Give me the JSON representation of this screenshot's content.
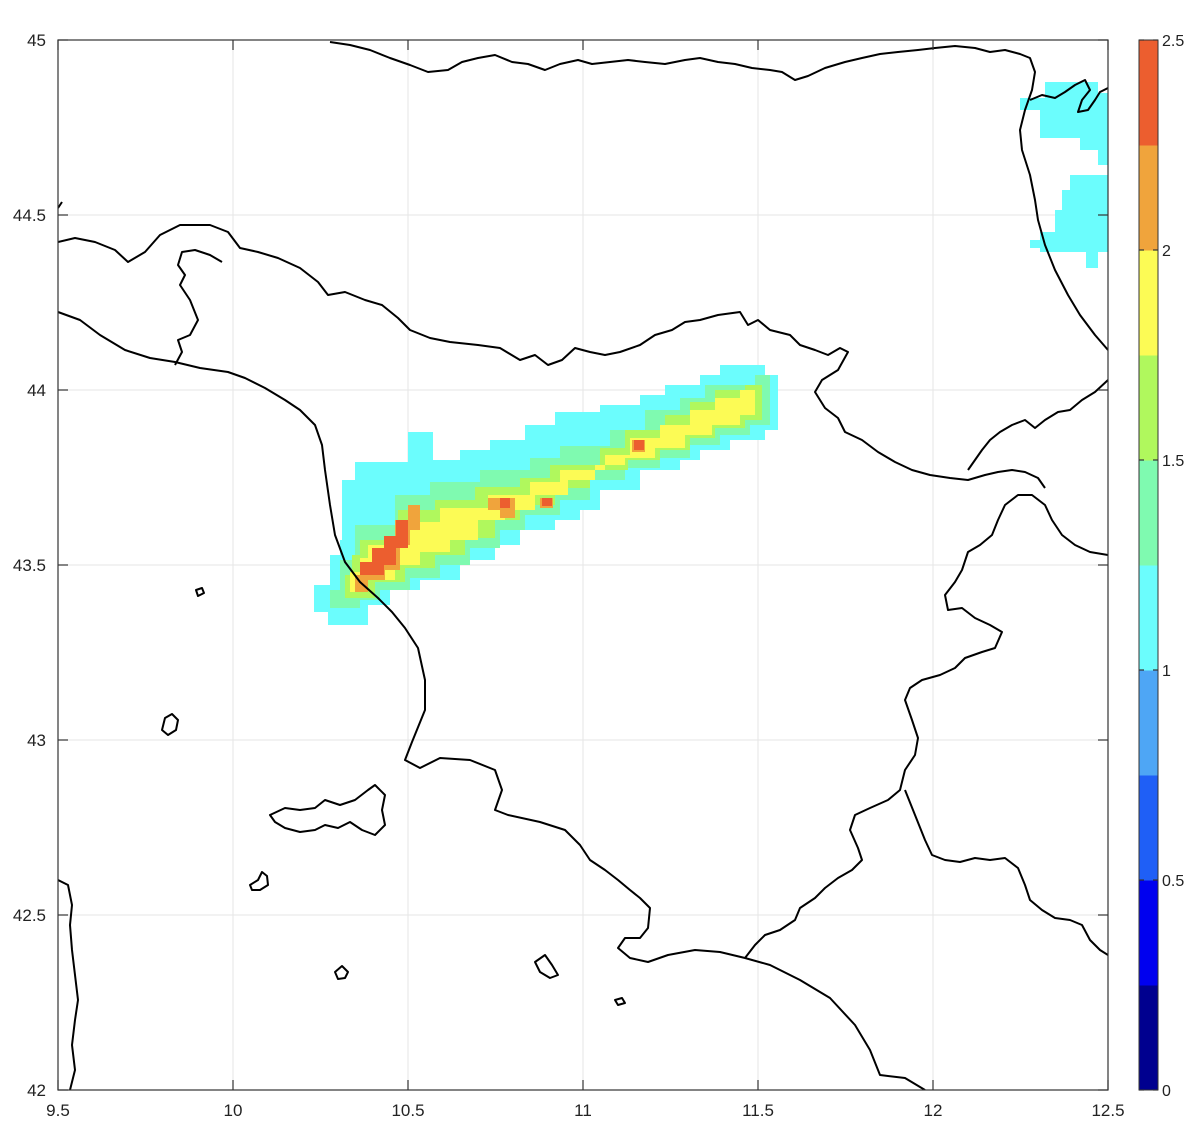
{
  "map": {
    "lon_range": [
      9.5,
      12.5
    ],
    "lat_range": [
      42,
      45
    ],
    "x_ticks": [
      "9.5",
      "10",
      "10.5",
      "11",
      "11.5",
      "12",
      "12.5"
    ],
    "y_ticks": [
      "42",
      "42.5",
      "43",
      "43.5",
      "44",
      "44.5",
      "45"
    ],
    "grid": true,
    "background": "#ffffff",
    "coastline_color": "#000000"
  },
  "colorbar": {
    "range": [
      0,
      2.5
    ],
    "placement": "right",
    "ticks": [
      "0",
      "0.5",
      "1",
      "1.5",
      "2",
      "2.5"
    ],
    "colors": [
      "#00008f",
      "#0000ef",
      "#1f5ff6",
      "#4ea6f5",
      "#6bfdfd",
      "#7ffab0",
      "#b0f85d",
      "#fcfb55",
      "#f0a43c",
      "#ec5e2f"
    ]
  },
  "chart_data": {
    "type": "heatmap",
    "x_unit": "longitude",
    "y_unit": "latitude",
    "xlim": [
      9.5,
      12.5
    ],
    "ylim": [
      42,
      45
    ],
    "value_range": [
      0,
      2.5
    ],
    "plume_cells": [
      {
        "lon": 10.33,
        "lat": 43.4,
        "value": 1.2
      },
      {
        "lon": 10.38,
        "lat": 43.47,
        "value": 1.9
      },
      {
        "lon": 10.4,
        "lat": 43.52,
        "value": 2.45
      },
      {
        "lon": 10.45,
        "lat": 43.55,
        "value": 2.4
      },
      {
        "lon": 10.48,
        "lat": 43.6,
        "value": 2.25
      },
      {
        "lon": 10.55,
        "lat": 43.62,
        "value": 1.9
      },
      {
        "lon": 10.65,
        "lat": 43.66,
        "value": 1.85
      },
      {
        "lon": 10.77,
        "lat": 43.69,
        "value": 2.25
      },
      {
        "lon": 10.88,
        "lat": 43.7,
        "value": 2.2
      },
      {
        "lon": 11.0,
        "lat": 43.76,
        "value": 1.85
      },
      {
        "lon": 11.15,
        "lat": 43.84,
        "value": 2.2
      },
      {
        "lon": 11.3,
        "lat": 43.91,
        "value": 1.8
      },
      {
        "lon": 11.42,
        "lat": 43.97,
        "value": 1.8
      },
      {
        "lon": 11.5,
        "lat": 44.0,
        "value": 1.2
      },
      {
        "lon": 10.4,
        "lat": 43.75,
        "value": 1.1
      },
      {
        "lon": 10.5,
        "lat": 43.82,
        "value": 1.05
      },
      {
        "lon": 10.7,
        "lat": 43.8,
        "value": 1.1
      },
      {
        "lon": 11.0,
        "lat": 43.6,
        "value": 1.1
      },
      {
        "lon": 12.4,
        "lat": 44.7,
        "value": 1.05
      },
      {
        "lon": 12.45,
        "lat": 44.45,
        "value": 1.05
      }
    ]
  }
}
